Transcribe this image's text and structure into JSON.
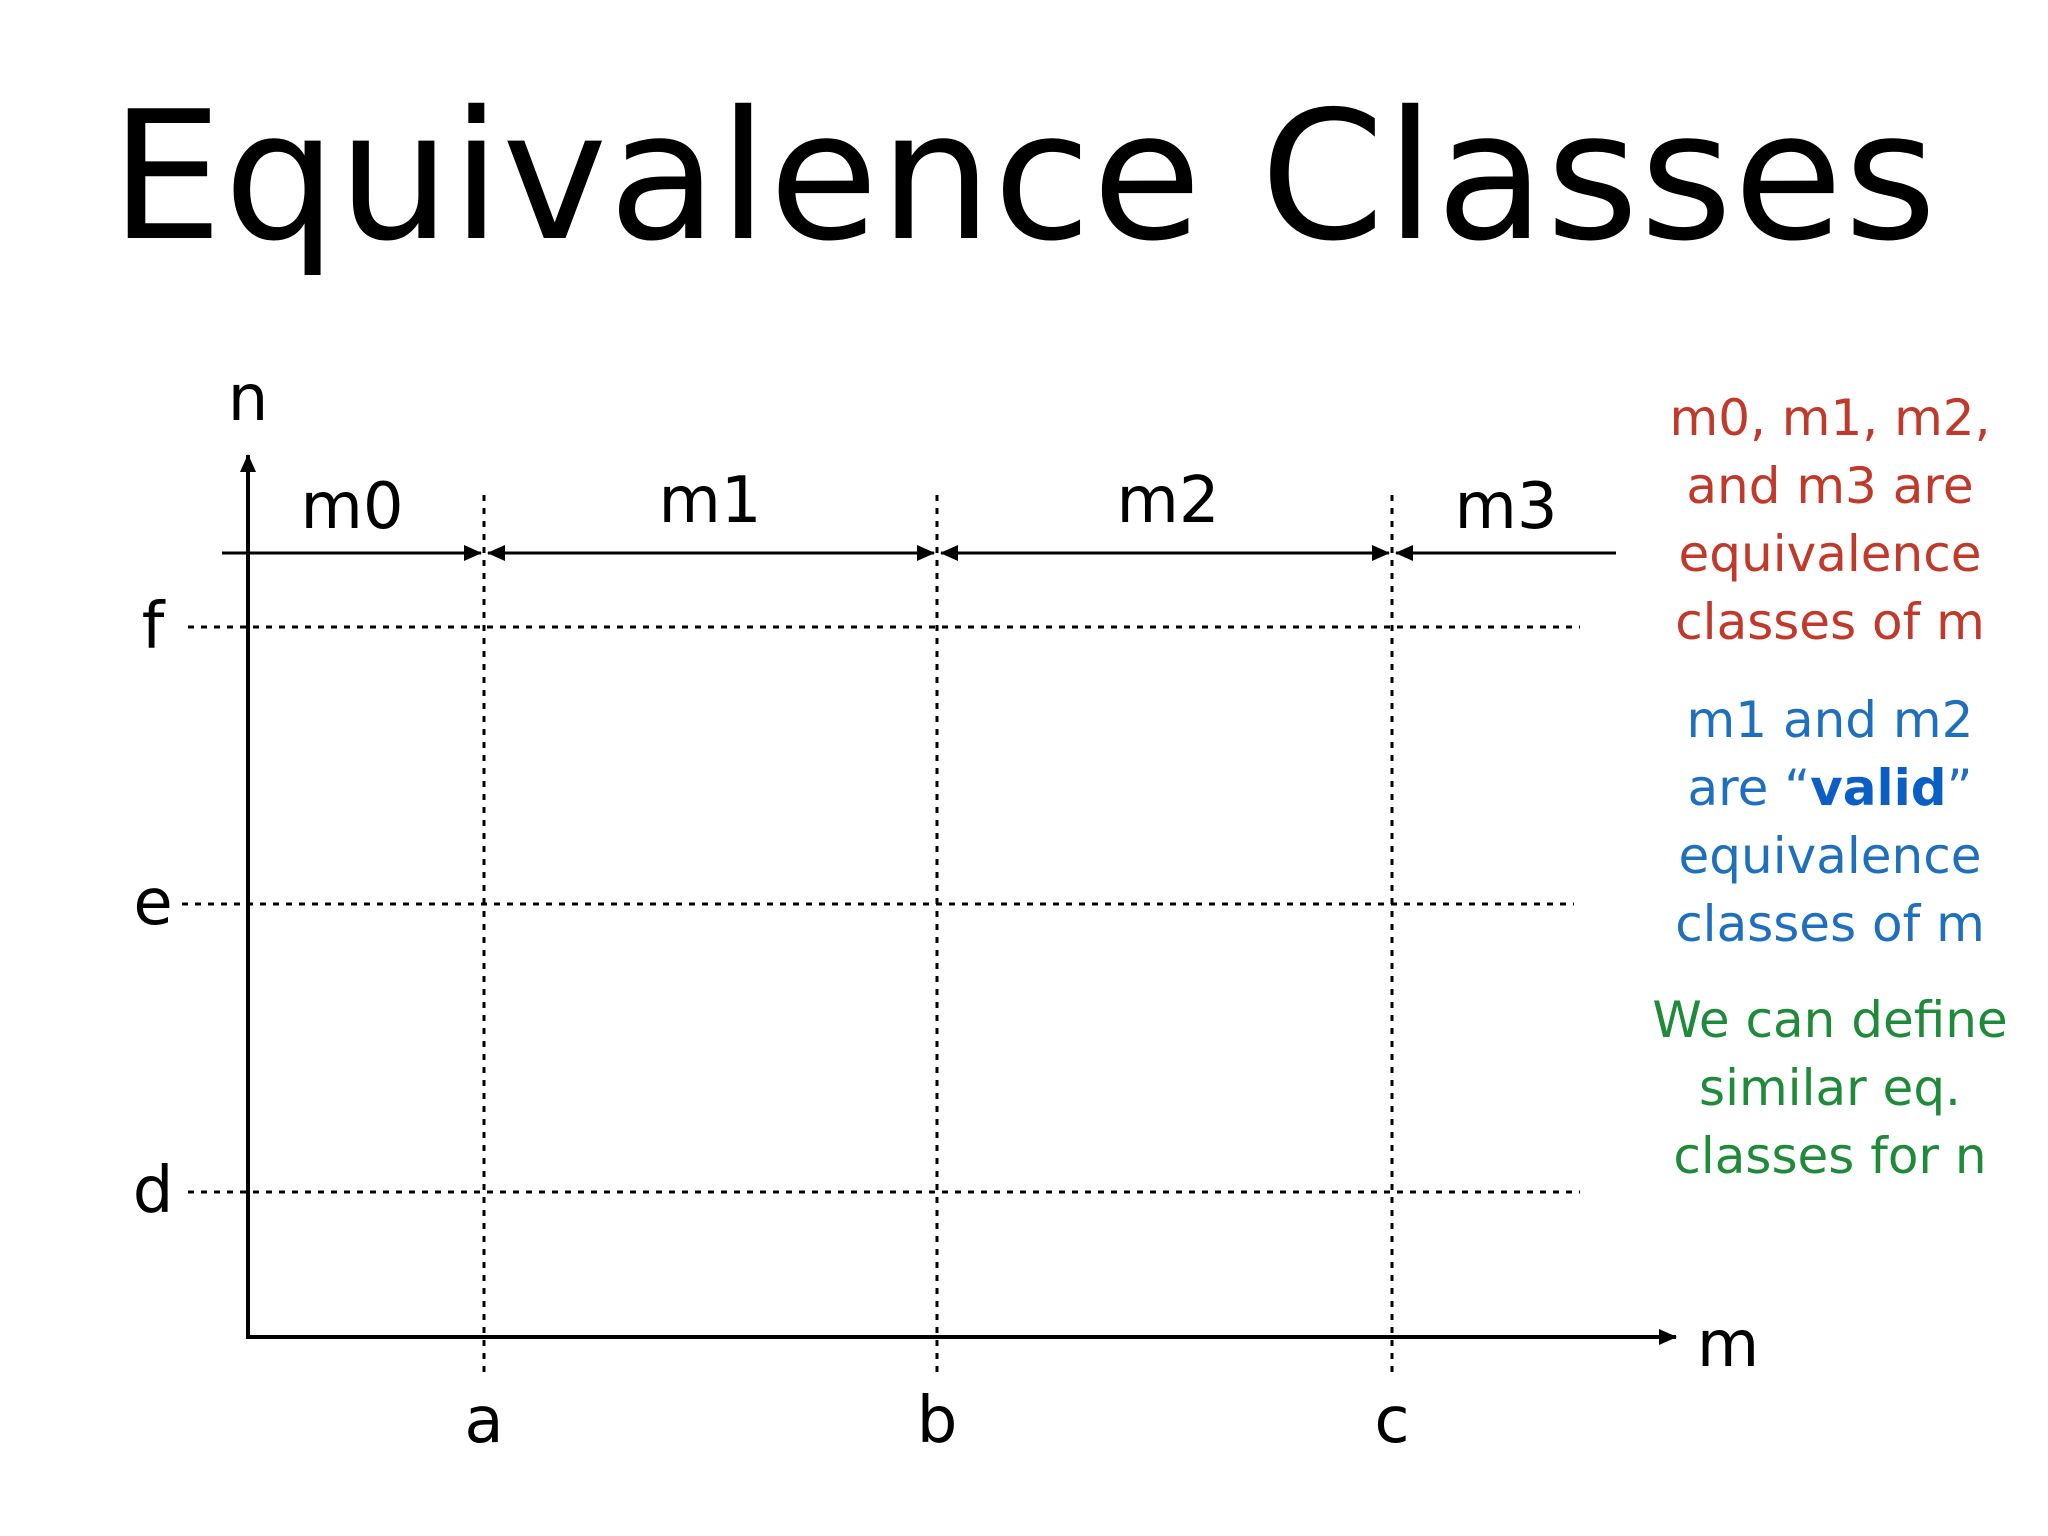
{
  "title": "Equivalence Classes",
  "axes": {
    "x_label": "m",
    "y_label": "n",
    "x_ticks": [
      "a",
      "b",
      "c"
    ],
    "y_ticks": [
      "f",
      "e",
      "d"
    ]
  },
  "ranges": [
    "m0",
    "m1",
    "m2",
    "m3"
  ],
  "notes": {
    "red": {
      "lines": [
        "m0, m1, m2,",
        "and m3 are",
        "equivalence",
        "classes of m"
      ],
      "color": "#c0392b"
    },
    "blue": {
      "line1": "m1 and m2",
      "line2_before": "are “",
      "line2_bold": "valid",
      "line2_after": "”",
      "line3": "equivalence",
      "line4": "classes of m",
      "color": "#1f6fbf"
    },
    "green": {
      "lines": [
        "We can define",
        "similar eq.",
        "classes for n"
      ],
      "color": "#1f8a3a"
    }
  }
}
